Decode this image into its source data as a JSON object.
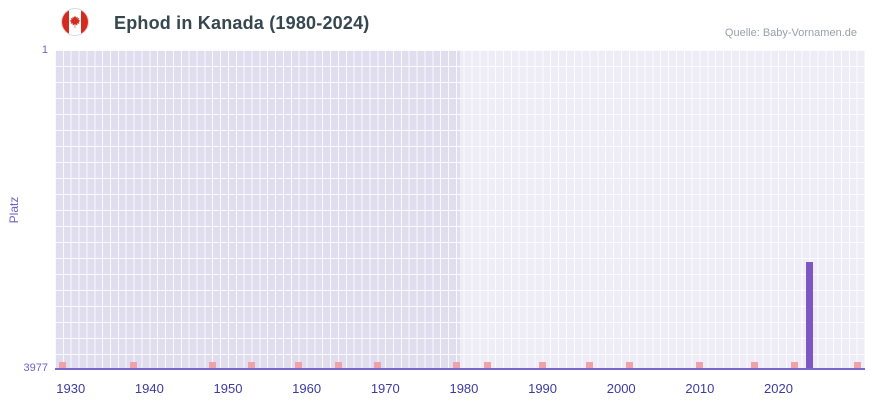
{
  "header": {
    "title": "Ephod in Kanada (1980-2024)",
    "source": "Quelle: Baby-Vornamen.de"
  },
  "chart_data": {
    "type": "bar",
    "title": "Ephod in Kanada (1980-2024)",
    "xlabel": "",
    "ylabel": "Platz",
    "legend": "none",
    "grid": true,
    "x_domain": [
      1928,
      2031
    ],
    "x_ticks": [
      1930,
      1940,
      1950,
      1960,
      1970,
      1980,
      1990,
      2000,
      2010,
      2020
    ],
    "y_axis": {
      "label": "Platz",
      "min": 1,
      "max": 3977,
      "top_label": "1",
      "bottom_label": "3977",
      "inverted": true
    },
    "no_data_region": {
      "from": 1928,
      "to": 1979.5
    },
    "series": [
      {
        "name": "Ephod",
        "points": [
          {
            "year": 2024,
            "rank": 2640
          }
        ]
      }
    ],
    "baseline_marker_years": [
      1929,
      1938,
      1948,
      1953,
      1959,
      1964,
      1969,
      1979,
      1983,
      1990,
      1996,
      2001,
      2010,
      2017,
      2022,
      2030
    ],
    "colors": {
      "bar": "#7e57c2",
      "axis_line": "#7668cf",
      "no_rank_marker": "#f1a2a9",
      "plot_background": "#edecf7",
      "no_data_background": "#e0ddef",
      "x_tick_label": "#3c3ca0",
      "y_tick_label": "#6f61c6",
      "title": "#37474f",
      "source": "#9aa0a6",
      "flag_red": "#d52b1e"
    }
  }
}
